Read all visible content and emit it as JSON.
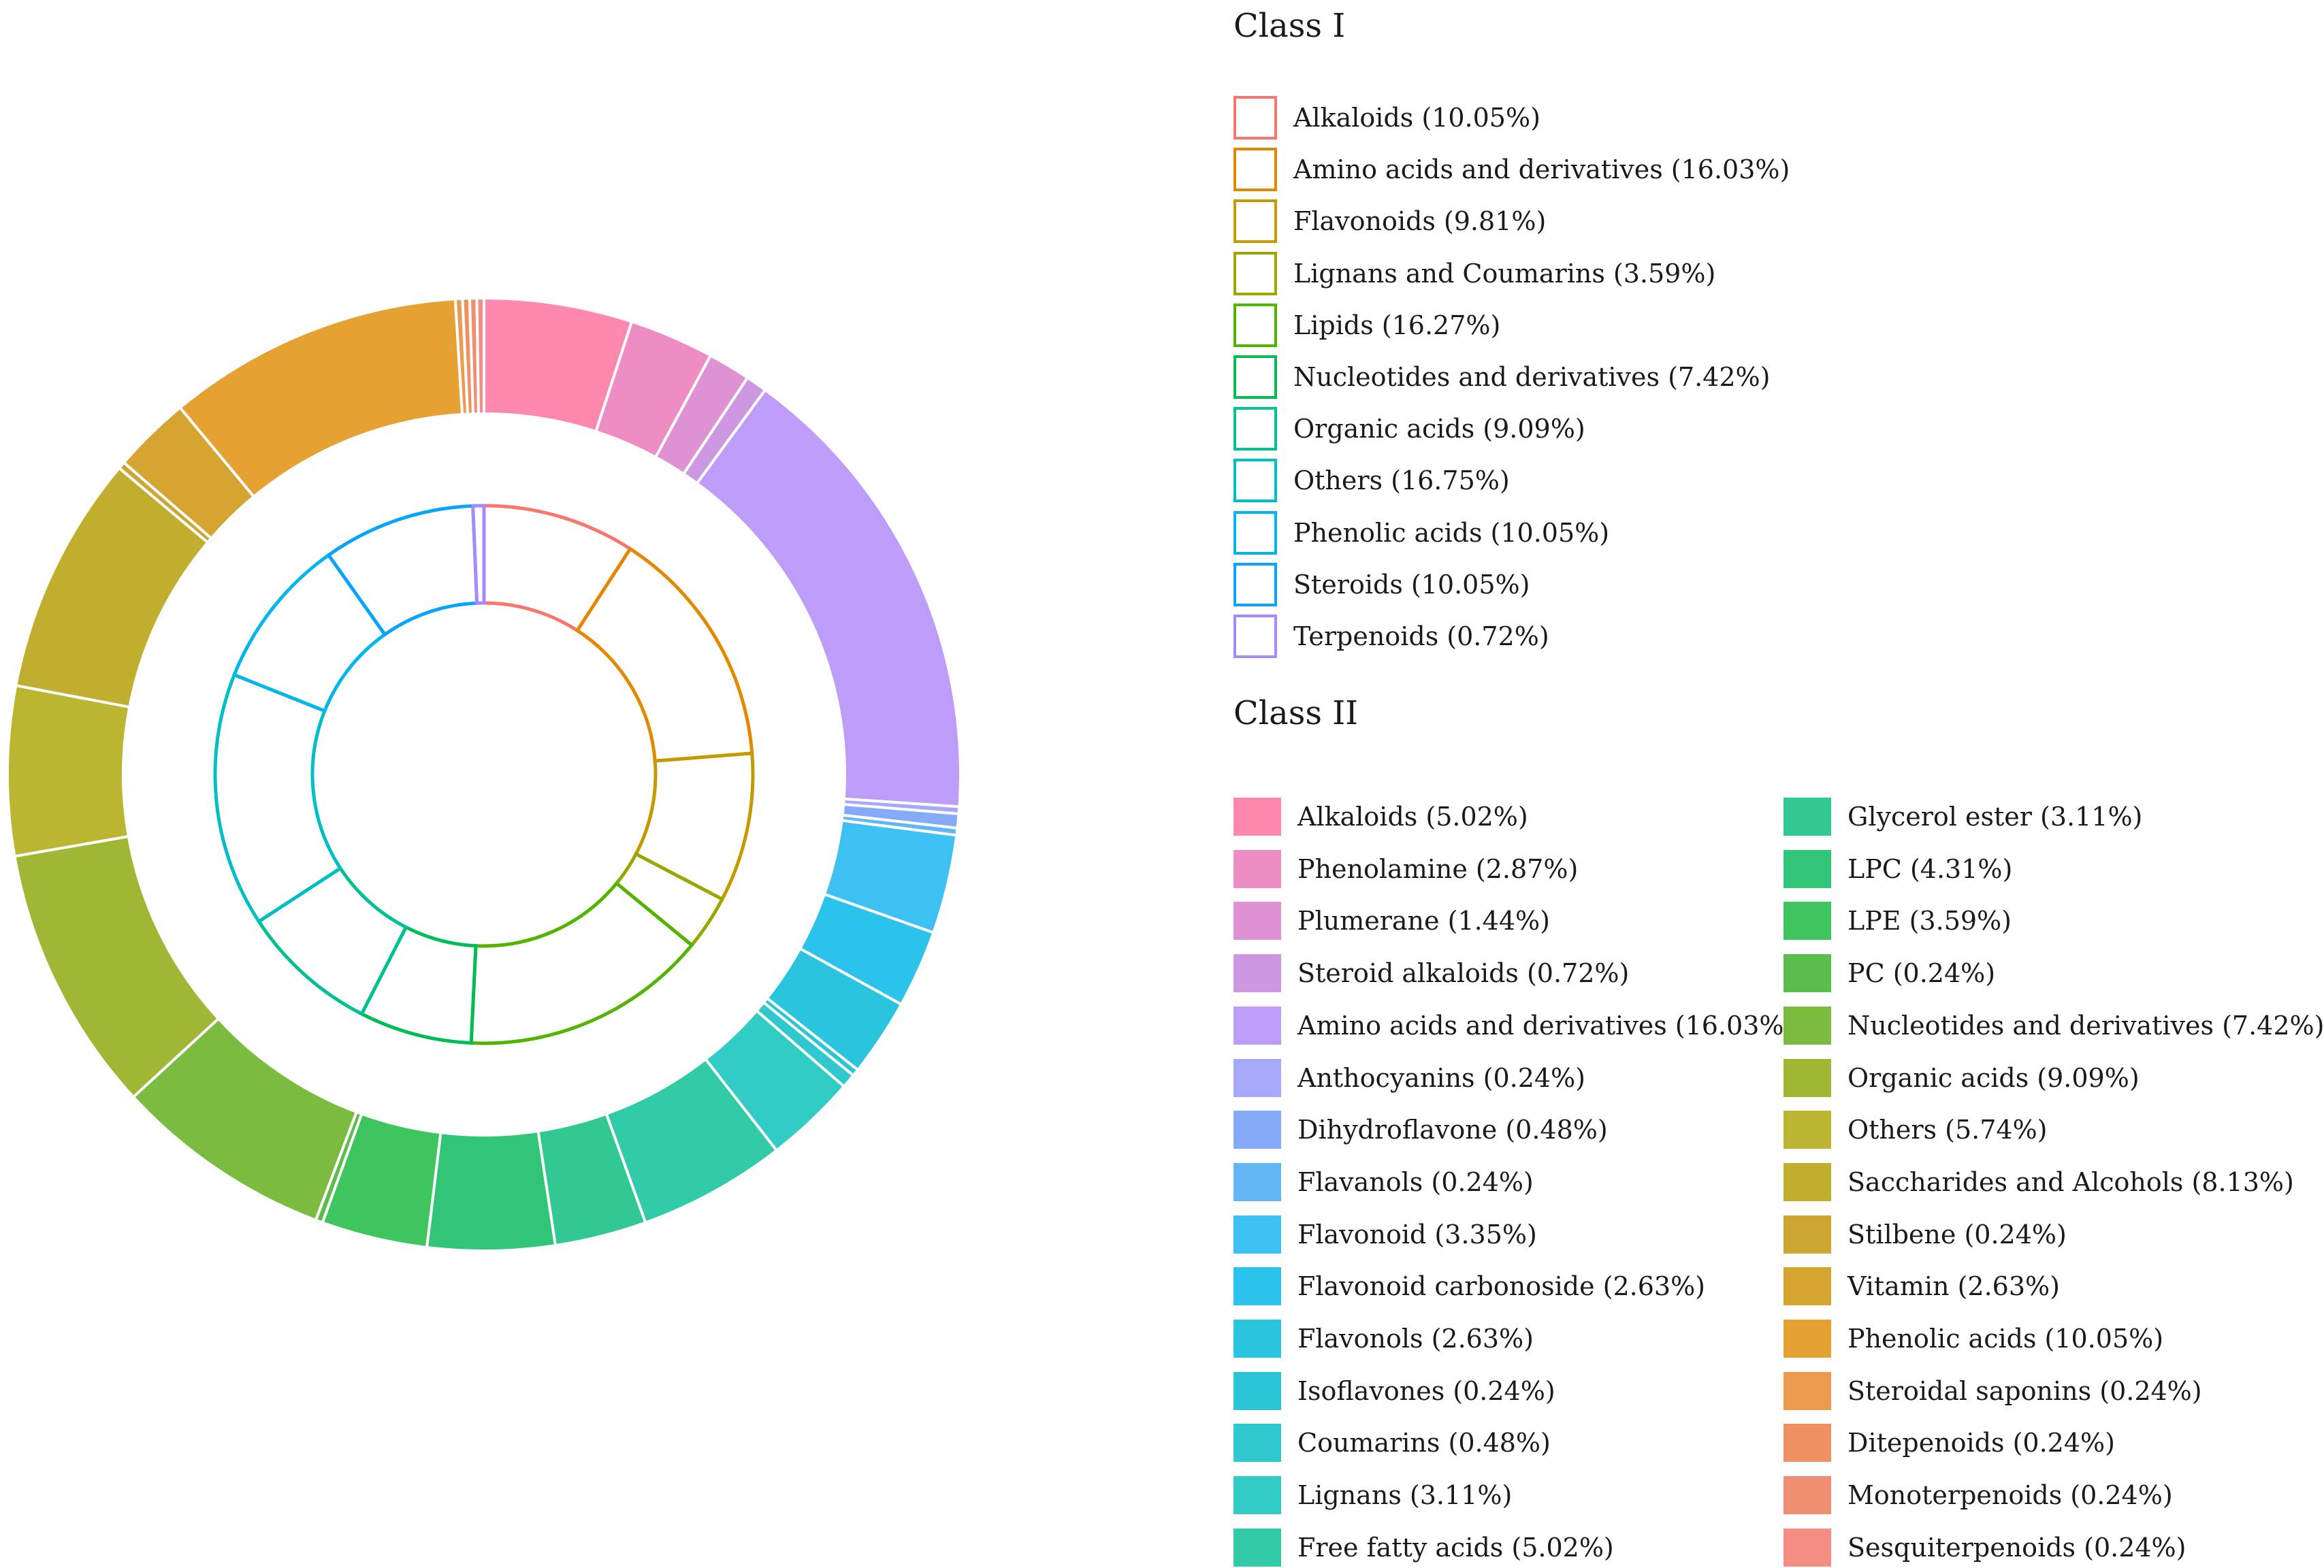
{
  "chart_data": {
    "type": "pie",
    "class1": {
      "title": "Class I",
      "items": [
        {
          "label": "Alkaloids (10.05%)",
          "value": 10.05,
          "color": "#F8766D"
        },
        {
          "label": "Amino acids and derivatives (16.03%)",
          "value": 16.03,
          "color": "#E38900"
        },
        {
          "label": "Flavonoids (9.81%)",
          "value": 9.81,
          "color": "#C49A00"
        },
        {
          "label": "Lignans and Coumarins (3.59%)",
          "value": 3.59,
          "color": "#99A800"
        },
        {
          "label": "Lipids (16.27%)",
          "value": 16.27,
          "color": "#53B400"
        },
        {
          "label": "Nucleotides and derivatives (7.42%)",
          "value": 7.42,
          "color": "#00BC56"
        },
        {
          "label": "Organic acids (9.09%)",
          "value": 9.09,
          "color": "#00C094"
        },
        {
          "label": "Others (16.75%)",
          "value": 16.75,
          "color": "#00BFC4"
        },
        {
          "label": "Phenolic acids (10.05%)",
          "value": 10.05,
          "color": "#00B6EB"
        },
        {
          "label": "Steroids (10.05%)",
          "value": 10.05,
          "color": "#06A4FF"
        },
        {
          "label": "Terpenoids (0.72%)",
          "value": 0.72,
          "color": "#A58AFF"
        }
      ]
    },
    "class2": {
      "title": "Class II",
      "items": [
        {
          "label": "Alkaloids (5.02%)",
          "value": 5.02,
          "color": "#FF88AF"
        },
        {
          "label": "Phenolamine (2.87%)",
          "value": 2.87,
          "color": "#EE8DC3"
        },
        {
          "label": "Plumerane (1.44%)",
          "value": 1.44,
          "color": "#DE92D3"
        },
        {
          "label": "Steroid alkaloids (0.72%)",
          "value": 0.72,
          "color": "#CE97E2"
        },
        {
          "label": "Amino acids and derivatives (16.03%)",
          "value": 16.03,
          "color": "#BE9CF9"
        },
        {
          "label": "Anthocyanins (0.24%)",
          "value": 0.24,
          "color": "#A6A8F9"
        },
        {
          "label": "Dihydroflavone (0.48%)",
          "value": 0.48,
          "color": "#84AAF8"
        },
        {
          "label": "Flavanols (0.24%)",
          "value": 0.24,
          "color": "#63B6F4"
        },
        {
          "label": "Flavonoid (3.35%)",
          "value": 3.35,
          "color": "#3DC0F2"
        },
        {
          "label": "Flavonoid carbonoside (2.63%)",
          "value": 2.63,
          "color": "#2BC3EB"
        },
        {
          "label": "Flavonols (2.63%)",
          "value": 2.63,
          "color": "#2AC4DF"
        },
        {
          "label": "Isoflavones (0.24%)",
          "value": 0.24,
          "color": "#2AC6D6"
        },
        {
          "label": "Coumarins (0.48%)",
          "value": 0.48,
          "color": "#2FC8CF"
        },
        {
          "label": "Lignans (3.11%)",
          "value": 3.11,
          "color": "#31CCC3"
        },
        {
          "label": "Free fatty acids (5.02%)",
          "value": 5.02,
          "color": "#31CBA8"
        },
        {
          "label": "Glycerol ester (3.11%)",
          "value": 3.11,
          "color": "#31C991"
        },
        {
          "label": "LPC (4.31%)",
          "value": 4.31,
          "color": "#31C677"
        },
        {
          "label": "LPE (3.59%)",
          "value": 3.59,
          "color": "#3FC55D"
        },
        {
          "label": "PC (0.24%)",
          "value": 0.24,
          "color": "#5BBD4C"
        },
        {
          "label": "Nucleotides and derivatives (7.42%)",
          "value": 7.42,
          "color": "#7BBC40"
        },
        {
          "label": "Organic acids (9.09%)",
          "value": 9.09,
          "color": "#A0B735"
        },
        {
          "label": "Others (5.74%)",
          "value": 5.74,
          "color": "#BAB631"
        },
        {
          "label": "Saccharides and Alcohols (8.13%)",
          "value": 8.13,
          "color": "#C1AE2F"
        },
        {
          "label": "Stilbene (0.24%)",
          "value": 0.24,
          "color": "#CCA631"
        },
        {
          "label": "Vitamin (2.63%)",
          "value": 2.63,
          "color": "#D6A430"
        },
        {
          "label": "Phenolic acids (10.05%)",
          "value": 10.05,
          "color": "#E5A132"
        },
        {
          "label": "Steroidal saponins (0.24%)",
          "value": 0.24,
          "color": "#EC9B4E"
        },
        {
          "label": "Ditepenoids (0.24%)",
          "value": 0.24,
          "color": "#EE9062"
        },
        {
          "label": "Monoterpenoids (0.24%)",
          "value": 0.24,
          "color": "#F08E72"
        },
        {
          "label": "Sesquiterpenoids (0.24%)",
          "value": 0.24,
          "color": "#F48D83"
        }
      ]
    }
  }
}
